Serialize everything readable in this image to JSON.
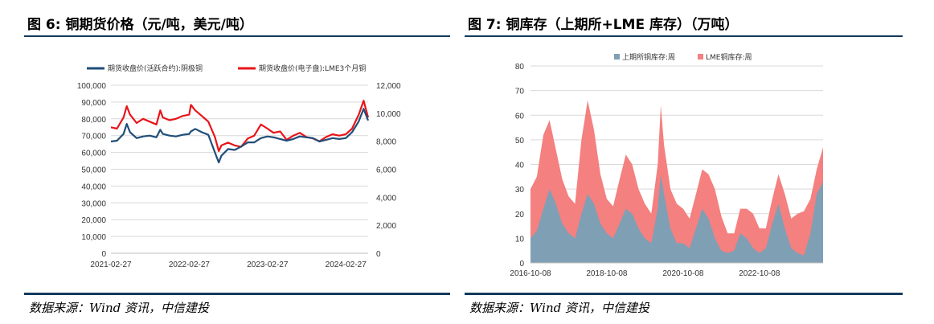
{
  "left": {
    "title": "图 6:  铜期货价格（元/吨，美元/吨）",
    "source": "数据来源：Wind 资讯，中信建投",
    "chart_data": {
      "type": "line",
      "legend": [
        "期货收盘价(活跃合约):阴极铜",
        "期货收盘价(电子盘):LME3个月铜"
      ],
      "legend_position": "top",
      "x_ticks": [
        "2021-02-27",
        "2022-02-27",
        "2023-02-27",
        "2024-02-27"
      ],
      "y_left_ticks": [
        "0",
        "10,000",
        "20,000",
        "30,000",
        "40,000",
        "50,000",
        "60,000",
        "70,000",
        "80,000",
        "90,000",
        "100,000"
      ],
      "y_right_ticks": [
        "0",
        "2,000",
        "4,000",
        "6,000",
        "8,000",
        "10,000",
        "12,000"
      ],
      "ylim_left": [
        0,
        100000
      ],
      "ylim_right": [
        0,
        12000
      ],
      "grid": true,
      "colors": {
        "series1": "#1f4e79",
        "series2": "#e8141a"
      },
      "series": [
        {
          "name": "期货收盘价(活跃合约):阴极铜",
          "axis": "left",
          "x": [
            "2021-02-27",
            "2021-03-27",
            "2021-04-27",
            "2021-05-12",
            "2021-05-27",
            "2021-06-27",
            "2021-07-27",
            "2021-08-27",
            "2021-09-27",
            "2021-10-15",
            "2021-10-27",
            "2021-11-27",
            "2021-12-27",
            "2022-01-27",
            "2022-02-27",
            "2022-03-07",
            "2022-03-27",
            "2022-04-27",
            "2022-05-27",
            "2022-06-27",
            "2022-07-15",
            "2022-07-27",
            "2022-08-27",
            "2022-09-27",
            "2022-10-27",
            "2022-11-27",
            "2022-12-27",
            "2023-01-27",
            "2023-02-27",
            "2023-03-27",
            "2023-04-27",
            "2023-05-27",
            "2023-06-27",
            "2023-07-27",
            "2023-08-27",
            "2023-09-27",
            "2023-10-27",
            "2023-11-27",
            "2023-12-27",
            "2024-01-27",
            "2024-02-27",
            "2024-03-27",
            "2024-04-27",
            "2024-05-20",
            "2024-06-10"
          ],
          "values": [
            66500,
            67000,
            71000,
            77000,
            72000,
            68500,
            69500,
            70000,
            69000,
            73500,
            71000,
            70000,
            69500,
            70500,
            71000,
            72500,
            74000,
            72000,
            70500,
            60000,
            54000,
            58000,
            62000,
            61500,
            63500,
            66000,
            66000,
            68500,
            69500,
            69000,
            68000,
            67000,
            68000,
            69500,
            69000,
            68500,
            66500,
            67500,
            68500,
            68000,
            68500,
            72000,
            78500,
            86000,
            79000
          ]
        },
        {
          "name": "期货收盘价(电子盘):LME3个月铜",
          "axis": "right",
          "x": [
            "2021-02-27",
            "2021-03-27",
            "2021-04-27",
            "2021-05-12",
            "2021-05-27",
            "2021-06-27",
            "2021-07-27",
            "2021-08-27",
            "2021-09-27",
            "2021-10-15",
            "2021-10-27",
            "2021-11-27",
            "2021-12-27",
            "2022-01-27",
            "2022-02-27",
            "2022-03-07",
            "2022-03-27",
            "2022-04-27",
            "2022-05-27",
            "2022-06-27",
            "2022-07-15",
            "2022-07-27",
            "2022-08-27",
            "2022-09-27",
            "2022-10-27",
            "2022-11-27",
            "2022-12-27",
            "2023-01-27",
            "2023-02-27",
            "2023-03-27",
            "2023-04-27",
            "2023-05-27",
            "2023-06-27",
            "2023-07-27",
            "2023-08-27",
            "2023-09-27",
            "2023-10-27",
            "2023-11-27",
            "2023-12-27",
            "2024-01-27",
            "2024-02-27",
            "2024-03-27",
            "2024-04-27",
            "2024-05-20",
            "2024-06-10"
          ],
          "values": [
            9000,
            8900,
            9700,
            10500,
            9900,
            9300,
            9600,
            9400,
            9200,
            10200,
            9700,
            9500,
            9600,
            9800,
            9900,
            10600,
            10200,
            9800,
            9400,
            8300,
            7300,
            7700,
            7900,
            7700,
            7600,
            8200,
            8400,
            9200,
            8900,
            8600,
            8700,
            8100,
            8400,
            8600,
            8300,
            8200,
            8000,
            8300,
            8500,
            8400,
            8500,
            8900,
            9900,
            10900,
            9700
          ]
        }
      ]
    }
  },
  "right": {
    "title": "图 7:  铜库存（上期所+LME 库存）（万吨）",
    "source": "数据来源：Wind 资讯，中信建投",
    "chart_data": {
      "type": "area",
      "stacked": true,
      "legend": [
        "上期所铜库存:周",
        "LME铜库存:周"
      ],
      "legend_position": "top",
      "x_ticks": [
        "2016-10-08",
        "2018-10-08",
        "2020-10-08",
        "2022-10-08"
      ],
      "y_ticks": [
        "0",
        "10",
        "20",
        "30",
        "40",
        "50",
        "60",
        "70",
        "80"
      ],
      "ylim": [
        0,
        80
      ],
      "grid": true,
      "colors": {
        "series1": "#7f9fb5",
        "series2": "#f48080"
      },
      "series": [
        {
          "name": "上期所铜库存:周",
          "x": [
            "2016-10-08",
            "2016-12-08",
            "2017-02-08",
            "2017-04-08",
            "2017-06-08",
            "2017-08-08",
            "2017-10-08",
            "2017-12-08",
            "2018-02-08",
            "2018-04-08",
            "2018-06-08",
            "2018-08-08",
            "2018-10-08",
            "2018-12-08",
            "2019-02-08",
            "2019-04-08",
            "2019-06-08",
            "2019-08-08",
            "2019-10-08",
            "2019-12-08",
            "2020-02-08",
            "2020-03-08",
            "2020-04-08",
            "2020-06-08",
            "2020-08-08",
            "2020-10-08",
            "2020-12-08",
            "2021-02-08",
            "2021-04-08",
            "2021-06-08",
            "2021-08-08",
            "2021-10-08",
            "2021-12-08",
            "2022-02-08",
            "2022-04-08",
            "2022-06-08",
            "2022-08-08",
            "2022-10-08",
            "2022-12-08",
            "2023-02-08",
            "2023-04-08",
            "2023-06-08",
            "2023-08-08",
            "2023-10-08",
            "2023-12-08",
            "2024-02-08",
            "2024-04-08",
            "2024-06-08"
          ],
          "values": [
            10,
            13,
            22,
            30,
            24,
            16,
            12,
            10,
            20,
            28,
            24,
            16,
            12,
            10,
            16,
            22,
            20,
            14,
            10,
            8,
            22,
            36,
            28,
            14,
            8,
            8,
            6,
            14,
            22,
            18,
            10,
            5,
            4,
            5,
            12,
            10,
            6,
            4,
            6,
            16,
            24,
            14,
            6,
            4,
            3,
            12,
            28,
            33
          ]
        },
        {
          "name": "LME铜库存:周",
          "x": [
            "2016-10-08",
            "2016-12-08",
            "2017-02-08",
            "2017-04-08",
            "2017-06-08",
            "2017-08-08",
            "2017-10-08",
            "2017-12-08",
            "2018-02-08",
            "2018-04-08",
            "2018-06-08",
            "2018-08-08",
            "2018-10-08",
            "2018-12-08",
            "2019-02-08",
            "2019-04-08",
            "2019-06-08",
            "2019-08-08",
            "2019-10-08",
            "2019-12-08",
            "2020-02-08",
            "2020-03-08",
            "2020-04-08",
            "2020-06-08",
            "2020-08-08",
            "2020-10-08",
            "2020-12-08",
            "2021-02-08",
            "2021-04-08",
            "2021-06-08",
            "2021-08-08",
            "2021-10-08",
            "2021-12-08",
            "2022-02-08",
            "2022-04-08",
            "2022-06-08",
            "2022-08-08",
            "2022-10-08",
            "2022-12-08",
            "2023-02-08",
            "2023-04-08",
            "2023-06-08",
            "2023-08-08",
            "2023-10-08",
            "2023-12-08",
            "2024-02-08",
            "2024-04-08",
            "2024-06-08"
          ],
          "values": [
            20,
            22,
            30,
            28,
            22,
            18,
            15,
            14,
            30,
            38,
            30,
            20,
            14,
            13,
            18,
            22,
            20,
            16,
            14,
            12,
            18,
            28,
            20,
            16,
            16,
            14,
            12,
            14,
            16,
            18,
            20,
            14,
            8,
            7,
            10,
            12,
            14,
            10,
            8,
            10,
            12,
            14,
            12,
            16,
            18,
            14,
            10,
            14
          ]
        }
      ]
    }
  }
}
